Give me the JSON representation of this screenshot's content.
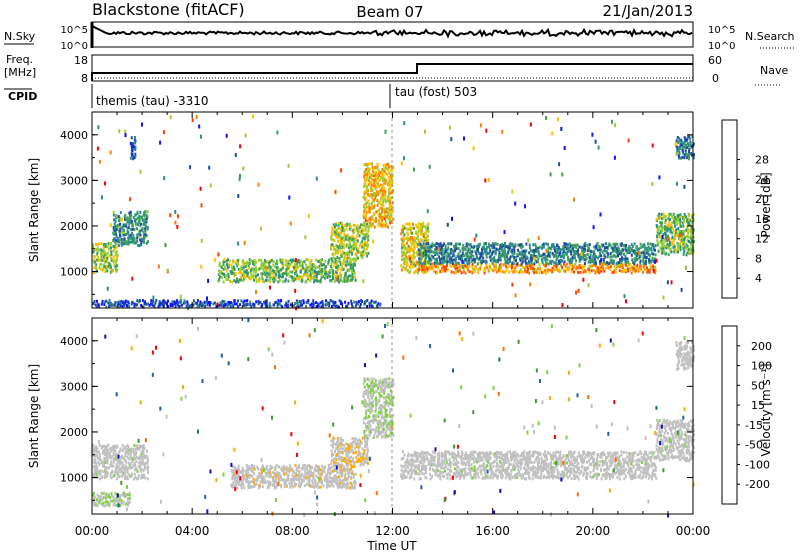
{
  "header": {
    "radar": "Blackstone (fitACF)",
    "beam": "Beam 07",
    "date": "21/Jan/2013"
  },
  "top_panels": {
    "nsky_label": "N.Sky",
    "nsky_ticks": [
      "10^5",
      "10^0"
    ],
    "nsearch_label": "N.Search",
    "freq_label": "Freq.",
    "freq_unit": "[MHz]",
    "freq_ticks": [
      "18",
      "8"
    ],
    "nave_label": "Nave",
    "nave_ticks": [
      "60",
      "0"
    ],
    "cpid_label": "CPID",
    "cpid_segments": [
      {
        "label": "themis (tau) -3310",
        "start_hour": 0
      },
      {
        "label": "tau (fost) 503",
        "start_hour": 12
      }
    ]
  },
  "x_axis": {
    "label": "Time UT",
    "ticks": [
      "00:00",
      "04:00",
      "08:00",
      "12:00",
      "16:00",
      "20:00",
      "00:00"
    ]
  },
  "colors": {
    "power": [
      "#1010ff",
      "#1d4ca0",
      "#2c8a8a",
      "#3aa05a",
      "#9acd32",
      "#ffc000",
      "#ff8000",
      "#ff4000",
      "#ff0000"
    ],
    "velocity": [
      "#ff0000",
      "#ff6a00",
      "#ffaa00",
      "#c0c0c0",
      "#c0c0c0",
      "#7fd040",
      "#3a9a30",
      "#1d60b0",
      "#1010c0"
    ]
  },
  "chart_data": [
    {
      "type": "heatmap",
      "name": "power",
      "ylabel": "Slant Range [km]",
      "ylim": [
        200,
        4500
      ],
      "yticks": [
        "1000",
        "2000",
        "3000",
        "4000"
      ],
      "xlim_hours": [
        0,
        24
      ],
      "colorbar_label": "Power [dB]",
      "colorbar_ticks": [
        "4",
        "8",
        "12",
        "16",
        "20",
        "24",
        "28"
      ],
      "colorbar_range": [
        0,
        32
      ],
      "regions": [
        {
          "t0": 0.0,
          "t1": 1.0,
          "r0": 1000,
          "r1": 1650,
          "v": 16
        },
        {
          "t0": 0.8,
          "t1": 2.2,
          "r0": 1600,
          "r1": 2350,
          "v": 10
        },
        {
          "t0": 1.5,
          "t1": 1.7,
          "r0": 3500,
          "r1": 4000,
          "v": 6
        },
        {
          "t0": 5.0,
          "t1": 10.5,
          "r0": 800,
          "r1": 1300,
          "v": 14
        },
        {
          "t0": 9.5,
          "t1": 11.0,
          "r0": 1300,
          "r1": 2100,
          "v": 16
        },
        {
          "t0": 10.8,
          "t1": 12.0,
          "r0": 2000,
          "r1": 3400,
          "v": 20
        },
        {
          "t0": 12.3,
          "t1": 13.4,
          "r0": 1000,
          "r1": 2100,
          "v": 18
        },
        {
          "t0": 13.0,
          "t1": 22.5,
          "r0": 1000,
          "r1": 1200,
          "v": 22
        },
        {
          "t0": 13.0,
          "t1": 22.5,
          "r0": 1200,
          "r1": 1650,
          "v": 9
        },
        {
          "t0": 22.5,
          "t1": 24.0,
          "r0": 1400,
          "r1": 2300,
          "v": 14
        },
        {
          "t0": 23.3,
          "t1": 24.0,
          "r0": 3500,
          "r1": 4000,
          "v": 8
        },
        {
          "t0": 0.0,
          "t1": 11.5,
          "r0": 250,
          "r1": 400,
          "v": 5
        }
      ]
    },
    {
      "type": "heatmap",
      "name": "velocity",
      "ylabel": "Slant Range [km]",
      "ylim": [
        200,
        4500
      ],
      "yticks": [
        "1000",
        "2000",
        "3000",
        "4000"
      ],
      "xlim_hours": [
        0,
        24
      ],
      "colorbar_label": "Velocity [m s⁻¹]",
      "colorbar_ticks": [
        "200",
        "100",
        "50",
        "15",
        "-15",
        "-50",
        "-100",
        "-200"
      ],
      "colorbar_range": [
        -250,
        250
      ],
      "regions": [
        {
          "t0": 0.0,
          "t1": 2.2,
          "r0": 1000,
          "r1": 1750,
          "v": 0
        },
        {
          "t0": 5.5,
          "t1": 10.5,
          "r0": 800,
          "r1": 1300,
          "v": -60
        },
        {
          "t0": 9.5,
          "t1": 11.0,
          "r0": 1300,
          "r1": 1900,
          "v": -70
        },
        {
          "t0": 10.8,
          "t1": 12.0,
          "r0": 1900,
          "r1": 3200,
          "v": 20
        },
        {
          "t0": 12.3,
          "t1": 22.5,
          "r0": 1000,
          "r1": 1600,
          "v": 0
        },
        {
          "t0": 22.5,
          "t1": 24.0,
          "r0": 1400,
          "r1": 2300,
          "v": 0
        },
        {
          "t0": 23.3,
          "t1": 24.0,
          "r0": 3400,
          "r1": 4000,
          "v": -10
        },
        {
          "t0": 0.0,
          "t1": 1.5,
          "r0": 400,
          "r1": 700,
          "v": 20
        }
      ]
    }
  ]
}
